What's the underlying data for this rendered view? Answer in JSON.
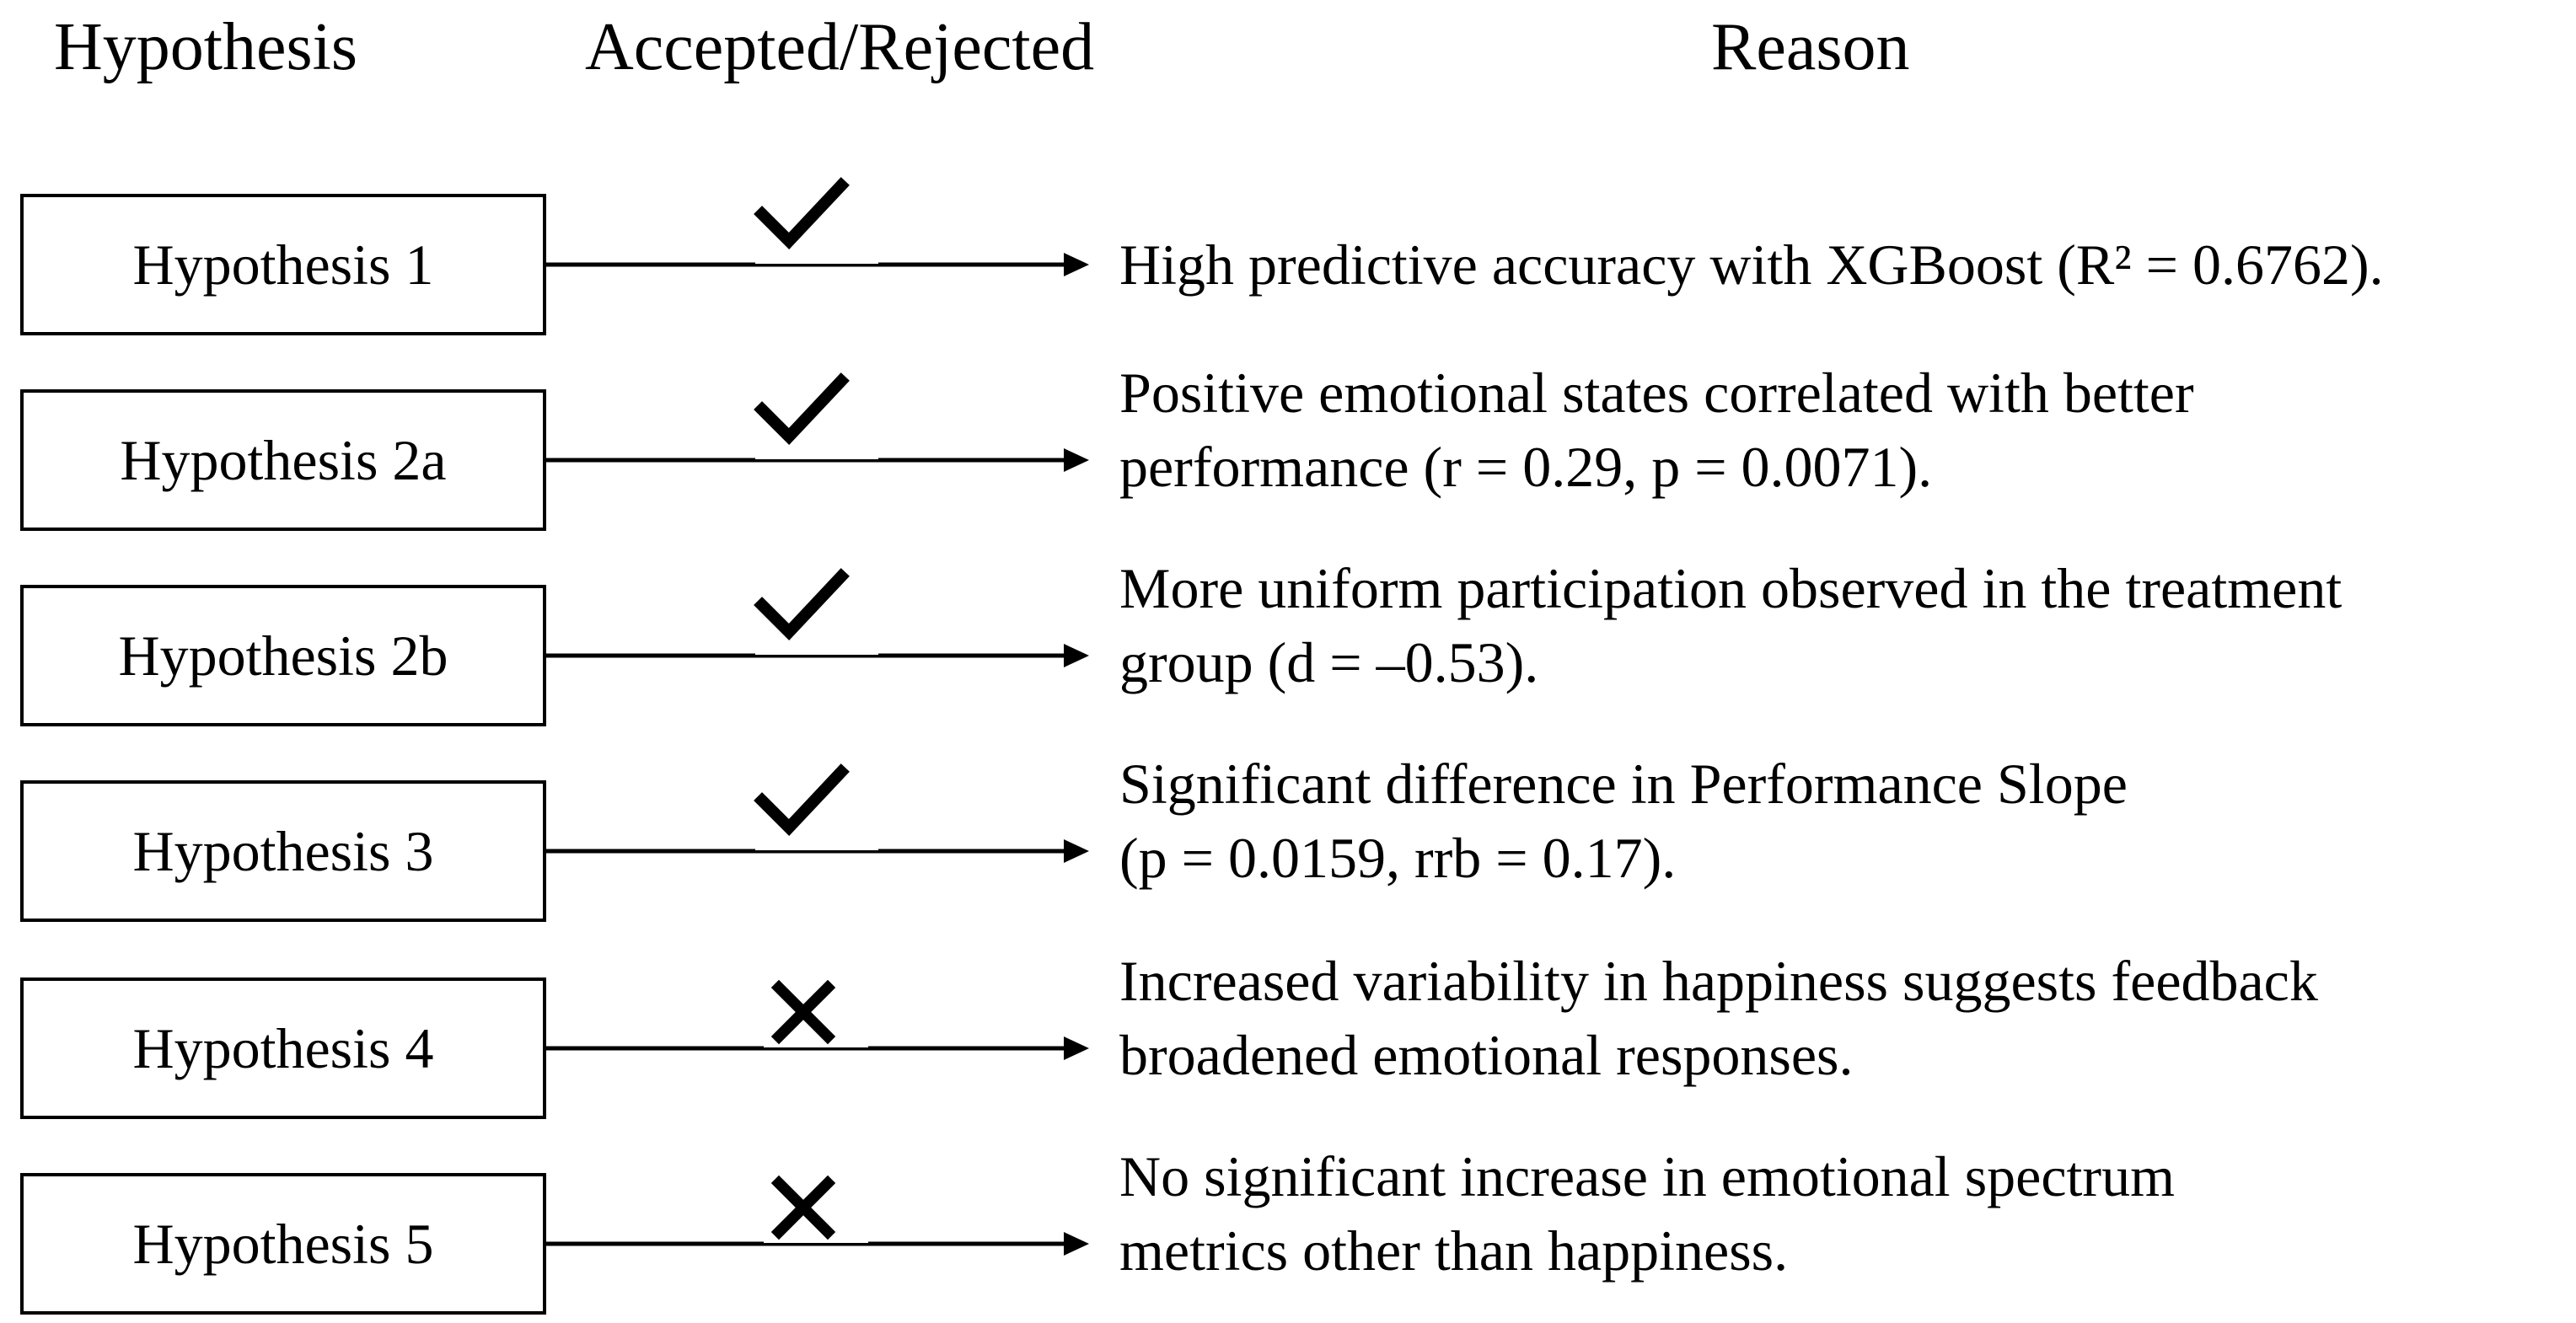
{
  "headers": {
    "hypothesis": "Hypothesis",
    "status": "Accepted/Rejected",
    "reason": "Reason"
  },
  "icons": {
    "accepted": "checkmark-icon",
    "rejected": "cross-icon"
  },
  "rows": [
    {
      "hypothesis": "Hypothesis 1",
      "status": "accepted",
      "reason": [
        "High predictive accuracy with XGBoost (R² = 0.6762)."
      ]
    },
    {
      "hypothesis": "Hypothesis 2a",
      "status": "accepted",
      "reason": [
        "Positive emotional states correlated with better",
        "performance (r = 0.29, p = 0.0071)."
      ]
    },
    {
      "hypothesis": "Hypothesis 2b",
      "status": "accepted",
      "reason": [
        "More uniform participation observed in the treatment",
        "group (d = –0.53)."
      ]
    },
    {
      "hypothesis": "Hypothesis 3",
      "status": "accepted",
      "reason": [
        "Significant difference in Performance Slope",
        "(p = 0.0159, rrb = 0.17)."
      ]
    },
    {
      "hypothesis": "Hypothesis 4",
      "status": "rejected",
      "reason": [
        "Increased variability in happiness suggests feedback",
        "broadened emotional responses."
      ]
    },
    {
      "hypothesis": "Hypothesis 5",
      "status": "rejected",
      "reason": [
        "No significant increase in emotional spectrum",
        "metrics other than happiness."
      ]
    }
  ]
}
